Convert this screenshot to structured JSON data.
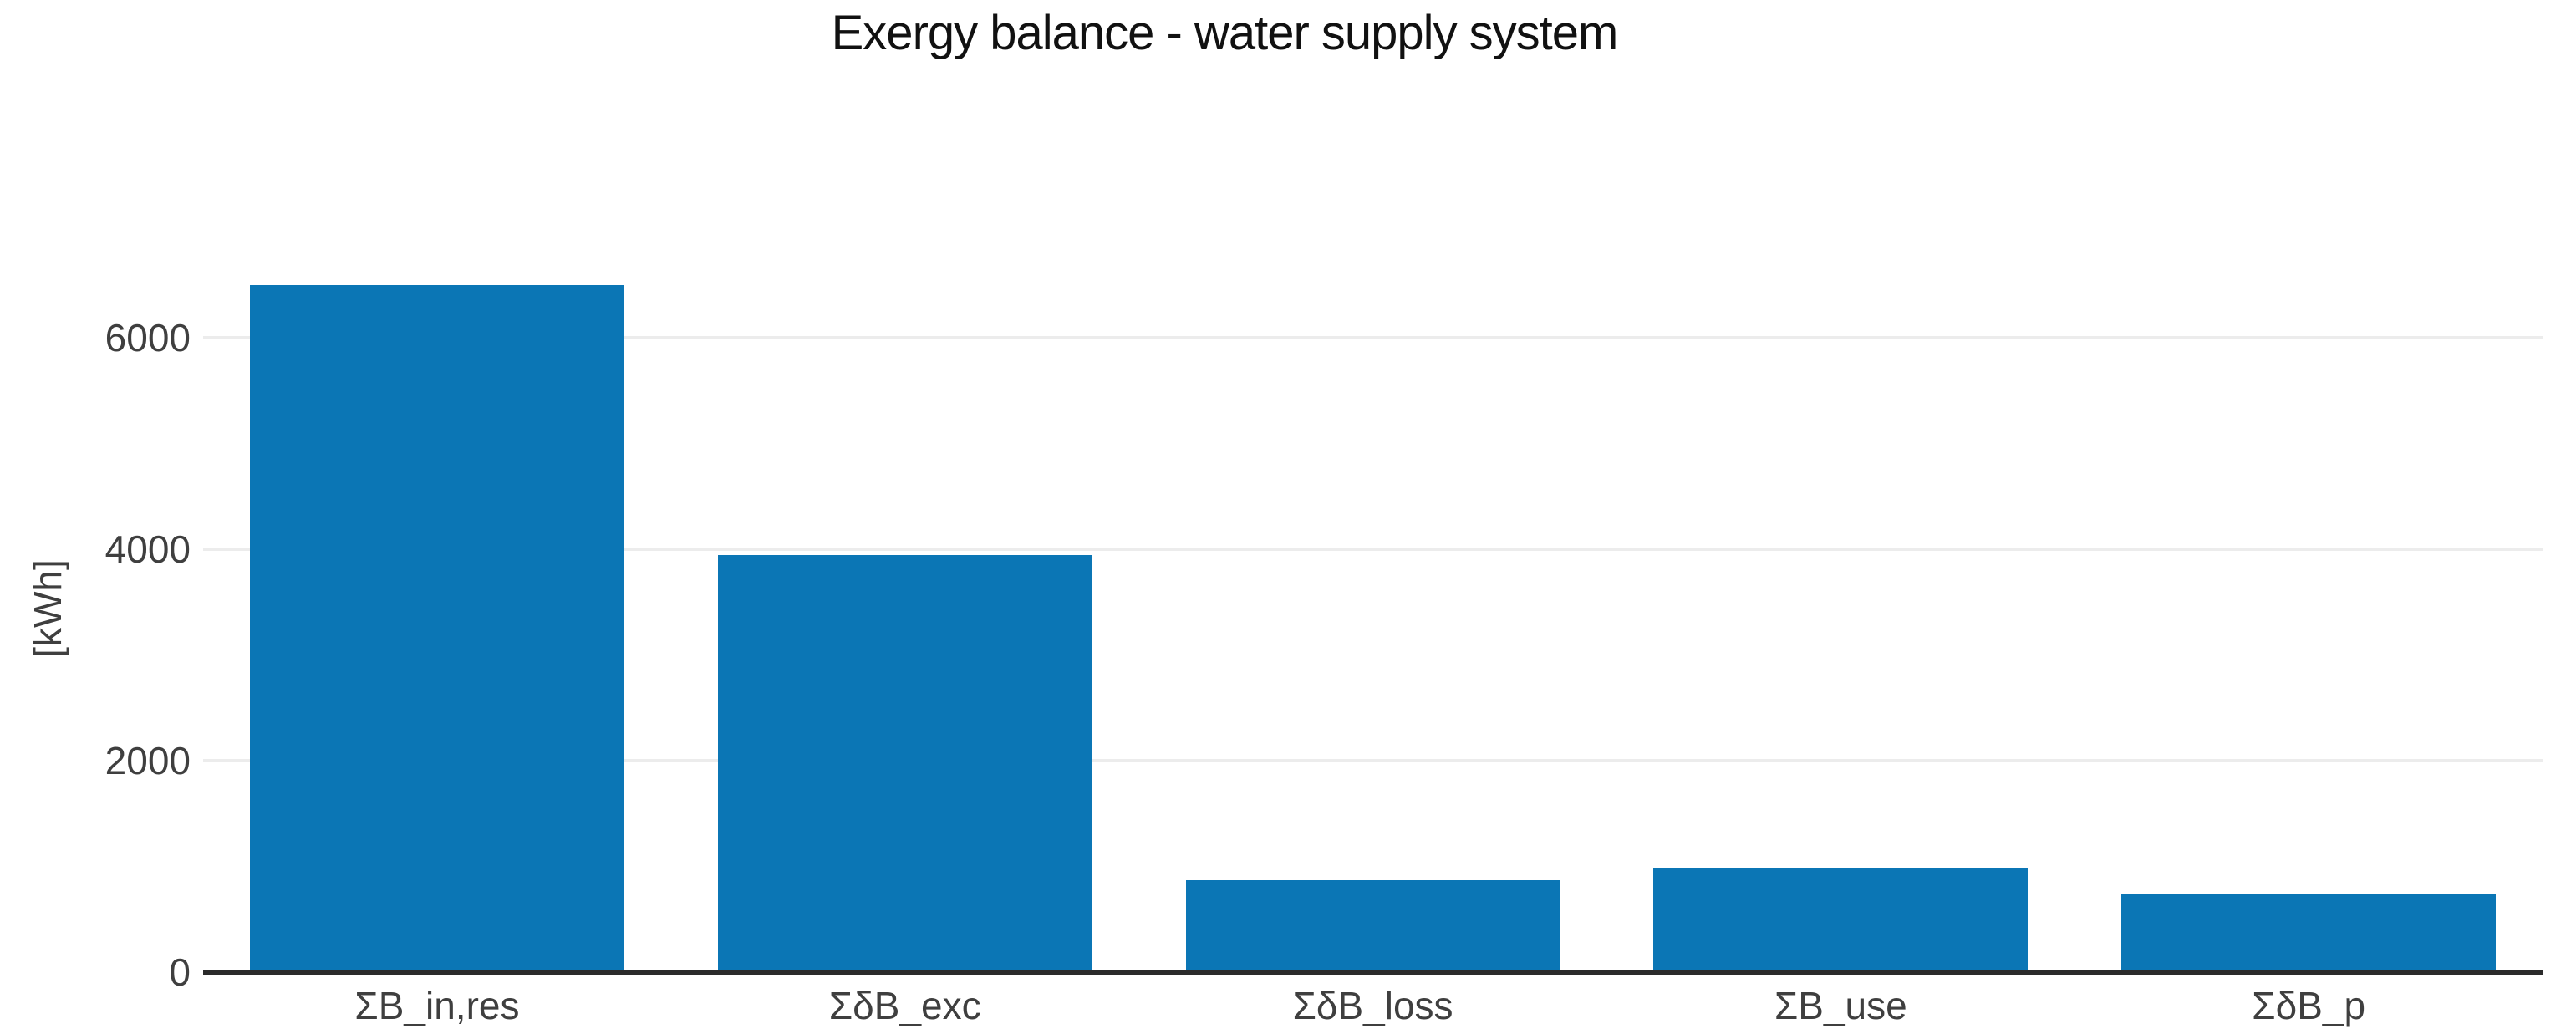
{
  "chart_data": {
    "type": "bar",
    "title": "Exergy balance - water supply system",
    "xlabel": "",
    "ylabel": "[kWh]",
    "categories": [
      "ΣB_in,res",
      "ΣδB_exc",
      "ΣδB_loss",
      "ΣB_use",
      "ΣδB_p"
    ],
    "values": [
      6500,
      3950,
      870,
      990,
      740
    ],
    "yticks": [
      0,
      2000,
      4000,
      6000
    ],
    "ylim": [
      0,
      6880
    ],
    "grid": true,
    "legend": "none",
    "bar_width_fraction": 0.8,
    "colors": {
      "bar": "#0b76b5",
      "gridline": "#ececec",
      "axis_line": "#2b2b2b",
      "tick_label": "#3f3f3f",
      "title": "#111111",
      "background": "#ffffff"
    }
  }
}
